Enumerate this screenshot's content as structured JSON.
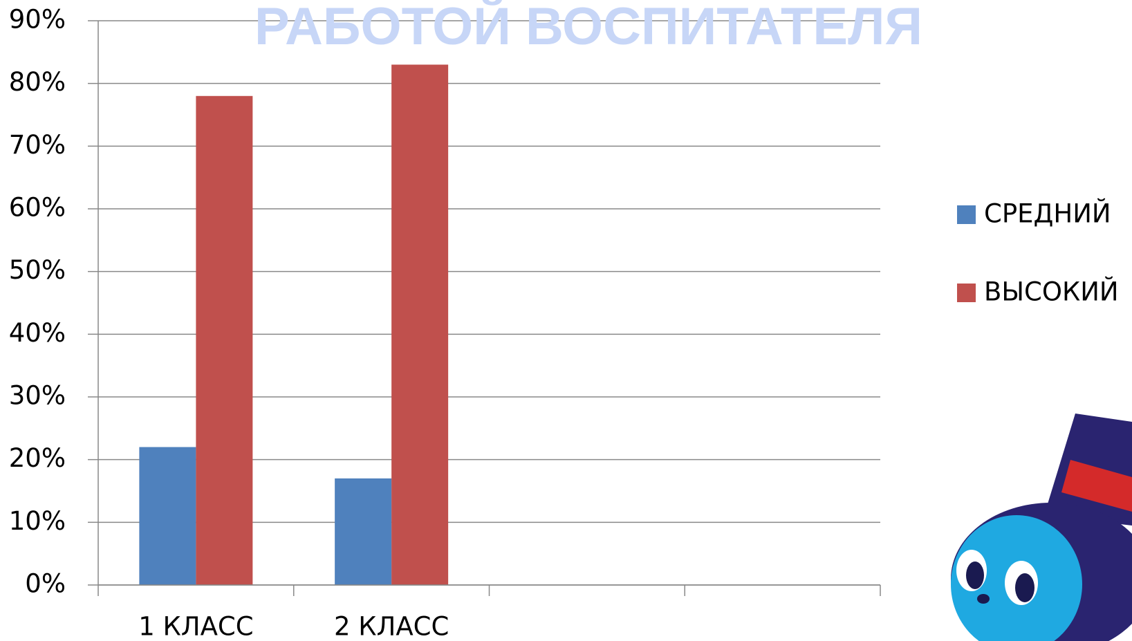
{
  "chart_data": {
    "type": "bar",
    "title": "РАБОТОЙ ВОСПИТАТЕЛЯ",
    "categories": [
      "1 КЛАСС",
      "2 КЛАСС",
      null,
      null
    ],
    "series": [
      {
        "name": "СРЕДНИЙ",
        "color": "#4f81bd",
        "values": [
          22,
          17,
          null,
          null
        ]
      },
      {
        "name": "ВЫСОКИЙ",
        "color": "#c0504d",
        "values": [
          78,
          83,
          null,
          null
        ]
      }
    ],
    "ylim": [
      0,
      90
    ],
    "yticks": [
      {
        "value": 0,
        "label": "0%"
      },
      {
        "value": 10,
        "label": "10%"
      },
      {
        "value": 20,
        "label": "20%"
      },
      {
        "value": 30,
        "label": "30%"
      },
      {
        "value": 40,
        "label": "40%"
      },
      {
        "value": 50,
        "label": "50%"
      },
      {
        "value": 60,
        "label": "60%"
      },
      {
        "value": 70,
        "label": "70%"
      },
      {
        "value": 80,
        "label": "80%"
      },
      {
        "value": 90,
        "label": "90%"
      }
    ],
    "grid": true,
    "legend": "right"
  }
}
